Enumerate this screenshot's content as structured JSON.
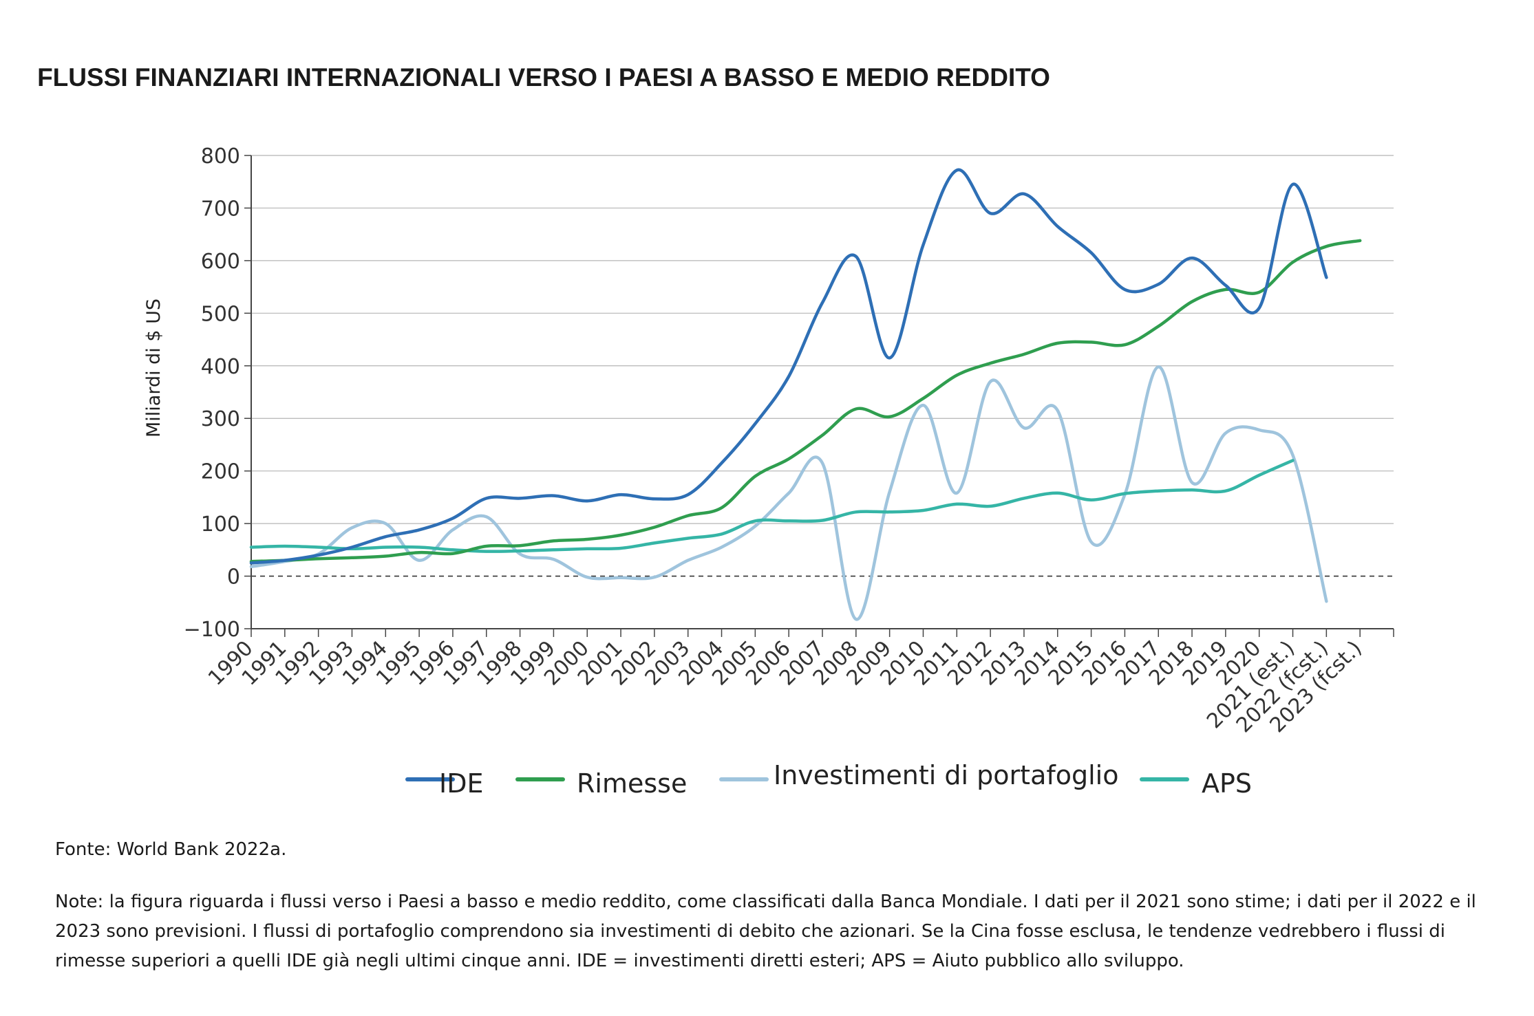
{
  "chart_data": {
    "type": "line",
    "title": "FLUSSI FINANZIARI INTERNAZIONALI VERSO I PAESI A BASSO E MEDIO REDDITO",
    "ylabel": "Miliardi di $ US",
    "xlabel": "",
    "ylim": [
      -100,
      800
    ],
    "yticks": [
      -100,
      0,
      100,
      200,
      300,
      400,
      500,
      600,
      700,
      800
    ],
    "ytick_labels": [
      "−100",
      "0",
      "100",
      "200",
      "300",
      "400",
      "500",
      "600",
      "700",
      "800"
    ],
    "grid": true,
    "zero_line": "dashed",
    "legend_position": "bottom",
    "x": [
      "1990",
      "1991",
      "1992",
      "1993",
      "1994",
      "1995",
      "1996",
      "1997",
      "1998",
      "1999",
      "2000",
      "2001",
      "2002",
      "2003",
      "2004",
      "2005",
      "2006",
      "2007",
      "2008",
      "2009",
      "2010",
      "2011",
      "2012",
      "2013",
      "2014",
      "2015",
      "2016",
      "2017",
      "2018",
      "2019",
      "2020",
      "2021 (est.)",
      "2022 (fcst.)",
      "2023 (fcst.)"
    ],
    "series": [
      {
        "name": "IDE",
        "color": "#2e6fb5",
        "values": [
          25,
          30,
          40,
          55,
          75,
          88,
          110,
          148,
          148,
          153,
          143,
          155,
          147,
          155,
          215,
          290,
          380,
          520,
          608,
          415,
          630,
          772,
          690,
          727,
          665,
          615,
          545,
          555,
          605,
          553,
          510,
          745,
          568,
          null
        ]
      },
      {
        "name": "Rimesse",
        "color": "#2f9e4f",
        "values": [
          28,
          30,
          33,
          35,
          38,
          45,
          43,
          57,
          58,
          67,
          70,
          78,
          93,
          115,
          130,
          190,
          223,
          268,
          318,
          303,
          338,
          382,
          405,
          422,
          443,
          445,
          440,
          475,
          522,
          545,
          540,
          597,
          627,
          638
        ]
      },
      {
        "name": "Investimenti di portafoglio",
        "color": "#9fc4dd",
        "values": [
          18,
          28,
          42,
          92,
          100,
          30,
          88,
          113,
          42,
          32,
          -2,
          -3,
          -2,
          30,
          55,
          95,
          158,
          215,
          -82,
          160,
          325,
          158,
          370,
          282,
          315,
          65,
          155,
          398,
          178,
          272,
          278,
          230,
          -48,
          null
        ]
      },
      {
        "name": "APS",
        "color": "#35b5a6",
        "values": [
          55,
          57,
          55,
          52,
          55,
          55,
          50,
          47,
          48,
          50,
          52,
          53,
          63,
          72,
          80,
          105,
          105,
          106,
          122,
          122,
          125,
          137,
          133,
          148,
          158,
          145,
          157,
          162,
          164,
          162,
          192,
          220,
          null,
          null
        ]
      }
    ]
  },
  "legend": {
    "items": [
      {
        "label": "IDE",
        "color": "#2e6fb5"
      },
      {
        "label": "Rimesse",
        "color": "#2f9e4f"
      },
      {
        "label": "Investimenti di portafoglio",
        "color": "#9fc4dd"
      },
      {
        "label": "APS",
        "color": "#35b5a6"
      }
    ]
  },
  "footer": {
    "source": "Fonte: World Bank 2022a.",
    "note": "Note: la figura riguarda i flussi verso i Paesi a basso e medio reddito, come classificati dalla Banca Mondiale. I dati per il 2021 sono stime; i dati per il 2022 e il 2023 sono previsioni. I flussi di portafoglio comprendono sia investimenti di debito che azionari. Se la Cina fosse esclusa, le tendenze vedrebbero i flussi di rimesse superiori a quelli IDE già negli ultimi cinque anni. IDE = investimenti diretti esteri; APS = Aiuto pubblico allo sviluppo."
  }
}
